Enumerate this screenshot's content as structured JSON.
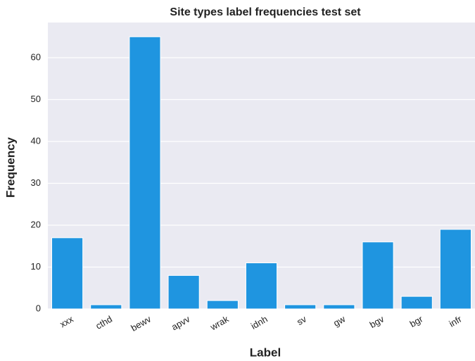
{
  "chart_data": {
    "type": "bar",
    "title": "Site types label frequencies test set",
    "x_label": "Label",
    "y_label": "Frequency",
    "categories": [
      "xxx",
      "cthd",
      "bewv",
      "apvv",
      "wrak",
      "idnh",
      "sv",
      "gw",
      "bgv",
      "bgr",
      "infr"
    ],
    "values": [
      17,
      1,
      65,
      8,
      2,
      11,
      1,
      1,
      16,
      3,
      19
    ],
    "color": "#1f95e0",
    "ylim": [
      0,
      68.4
    ],
    "yticks": [
      0,
      10,
      20,
      30,
      40,
      50,
      60
    ],
    "grid": true
  }
}
